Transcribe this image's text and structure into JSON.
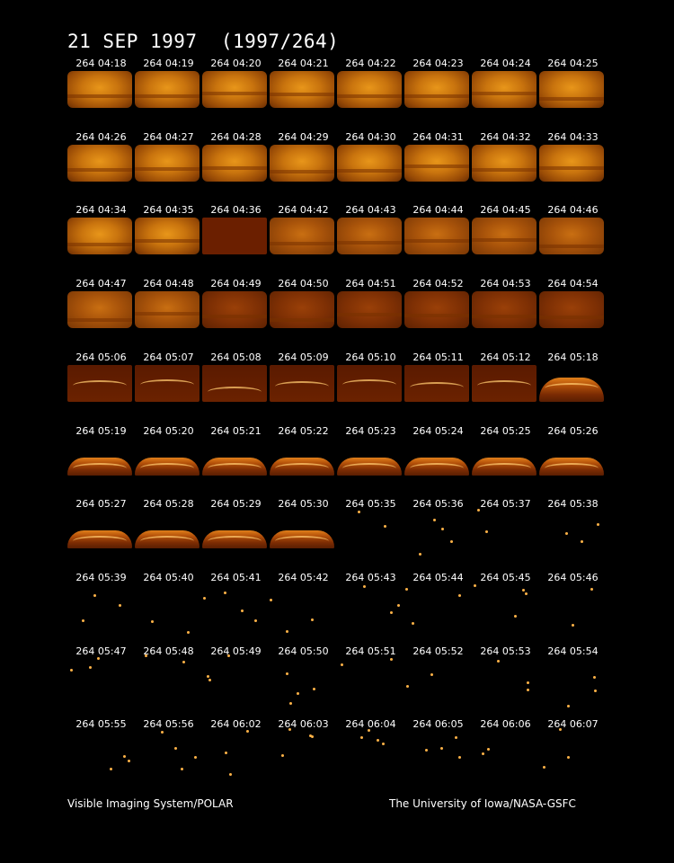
{
  "title": "21 SEP 1997  (1997/264)",
  "footer": {
    "left": "Visible Imaging System/POLAR",
    "right": "The University of Iowa/NASA-GSFC"
  },
  "frames": [
    [
      "264 04:18",
      "264 04:19",
      "264 04:20",
      "264 04:21",
      "264 04:22",
      "264 04:23",
      "264 04:24",
      "264 04:25"
    ],
    [
      "264 04:26",
      "264 04:27",
      "264 04:28",
      "264 04:29",
      "264 04:30",
      "264 04:31",
      "264 04:32",
      "264 04:33"
    ],
    [
      "264 04:34",
      "264 04:35",
      "264 04:36",
      "264 04:42",
      "264 04:43",
      "264 04:44",
      "264 04:45",
      "264 04:46"
    ],
    [
      "264 04:47",
      "264 04:48",
      "264 04:49",
      "264 04:50",
      "264 04:51",
      "264 04:52",
      "264 04:53",
      "264 04:54"
    ],
    [
      "264 05:06",
      "264 05:07",
      "264 05:08",
      "264 05:09",
      "264 05:10",
      "264 05:11",
      "264 05:12",
      "264 05:18"
    ],
    [
      "264 05:19",
      "264 05:20",
      "264 05:21",
      "264 05:22",
      "264 05:23",
      "264 05:24",
      "264 05:25",
      "264 05:26"
    ],
    [
      "264 05:27",
      "264 05:28",
      "264 05:29",
      "264 05:30",
      "264 05:35",
      "264 05:36",
      "264 05:37",
      "264 05:38"
    ],
    [
      "264 05:39",
      "264 05:40",
      "264 05:41",
      "264 05:42",
      "264 05:43",
      "264 05:44",
      "264 05:45",
      "264 05:46"
    ],
    [
      "264 05:47",
      "264 05:48",
      "264 05:49",
      "264 05:50",
      "264 05:51",
      "264 05:52",
      "264 05:53",
      "264 05:54"
    ],
    [
      "264 05:55",
      "264 05:56",
      "264 06:02",
      "264 06:03",
      "264 06:04",
      "264 06:05",
      "264 06:06",
      "264 06:07"
    ]
  ],
  "frame_kinds": [
    [
      "full",
      "full",
      "full",
      "full",
      "full",
      "full",
      "full",
      "full"
    ],
    [
      "full",
      "full",
      "full",
      "full",
      "full",
      "full",
      "full",
      "full"
    ],
    [
      "full",
      "full",
      "dark",
      "fade1",
      "fade1",
      "fade1",
      "fade1",
      "fade1"
    ],
    [
      "fade1",
      "fade1",
      "fade2",
      "fade2",
      "fade2",
      "fade2",
      "fade2",
      "fade2"
    ],
    [
      "dim",
      "dim",
      "dim",
      "dim",
      "dim",
      "dim",
      "dim",
      "band"
    ],
    [
      "band",
      "band",
      "band",
      "band",
      "band",
      "band",
      "band",
      "band"
    ],
    [
      "band",
      "band",
      "band",
      "band",
      "stars",
      "stars",
      "stars",
      "stars"
    ],
    [
      "stars",
      "stars",
      "stars",
      "stars",
      "stars",
      "stars",
      "stars",
      "stars"
    ],
    [
      "stars",
      "stars",
      "stars",
      "stars",
      "stars",
      "stars",
      "stars",
      "stars"
    ],
    [
      "stars",
      "stars",
      "stars",
      "stars",
      "stars",
      "stars",
      "stars",
      "stars"
    ]
  ]
}
